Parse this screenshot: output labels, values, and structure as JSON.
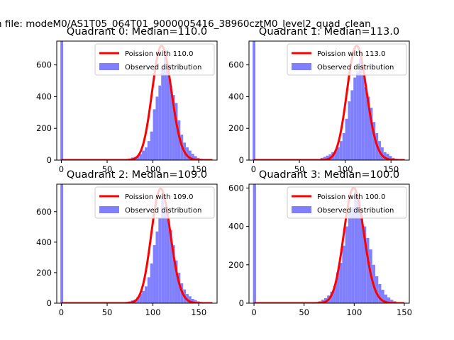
{
  "figure": {
    "suptitle": "n file: modeM0/AS1T05_064T01_9000005416_38960cztM0_level2_quad_clean"
  },
  "colors": {
    "hist": "#8080ff",
    "poisson": "#ff0000"
  },
  "chart_data": [
    {
      "type": "bar",
      "title": "Quadrant 0: Median=110.0",
      "xlim": [
        -5,
        170
      ],
      "ylim": [
        0,
        750
      ],
      "xticks": [
        "0",
        "50",
        "100",
        "150"
      ],
      "yticks": [
        "0",
        "200",
        "400",
        "600"
      ],
      "legend": {
        "placement": "top-right",
        "entries": [
          "Poission with 110.0",
          "Observed distribution"
        ]
      },
      "median": 110.0,
      "zero_bin_count": 750,
      "series": [
        {
          "name": "Observed distribution",
          "x": [
            64,
            67,
            70,
            73,
            76,
            79,
            82,
            85,
            88,
            91,
            94,
            97,
            100,
            103,
            106,
            109,
            112,
            115,
            118,
            121,
            124,
            127,
            130,
            133,
            136,
            139,
            142,
            145,
            148,
            151,
            154,
            157
          ],
          "values": [
            3,
            4,
            6,
            10,
            16,
            20,
            24,
            38,
            60,
            80,
            120,
            180,
            320,
            400,
            470,
            580,
            650,
            600,
            470,
            410,
            360,
            250,
            160,
            110,
            80,
            60,
            40,
            25,
            14,
            8,
            5,
            3
          ]
        },
        {
          "name": "Poission with 110.0",
          "mean": 110.0,
          "peak": 720
        }
      ]
    },
    {
      "type": "bar",
      "title": "Quadrant 1: Median=113.0",
      "xlim": [
        -5,
        170
      ],
      "ylim": [
        0,
        750
      ],
      "xticks": [
        "0",
        "50",
        "100",
        "150"
      ],
      "yticks": [
        "0",
        "200",
        "400",
        "600"
      ],
      "legend": {
        "placement": "top-right",
        "entries": [
          "Poission with 113.0",
          "Observed distribution"
        ]
      },
      "median": 113.0,
      "zero_bin_count": 750,
      "series": [
        {
          "name": "Observed distribution",
          "x": [
            67,
            70,
            73,
            76,
            79,
            82,
            85,
            88,
            91,
            94,
            97,
            100,
            103,
            106,
            109,
            112,
            115,
            118,
            121,
            124,
            127,
            130,
            133,
            136,
            139,
            142,
            145,
            148,
            151,
            154,
            157,
            160
          ],
          "values": [
            4,
            6,
            14,
            20,
            28,
            36,
            50,
            60,
            80,
            120,
            170,
            260,
            370,
            440,
            520,
            560,
            640,
            540,
            460,
            400,
            330,
            240,
            170,
            120,
            80,
            50,
            40,
            26,
            14,
            8,
            5,
            3
          ]
        },
        {
          "name": "Poission with 113.0",
          "mean": 113.0,
          "peak": 720
        }
      ]
    },
    {
      "type": "bar",
      "title": "Quadrant 2: Median=109.0",
      "xlim": [
        -5,
        170
      ],
      "ylim": [
        0,
        780
      ],
      "xticks": [
        "0",
        "50",
        "100",
        "150"
      ],
      "yticks": [
        "0",
        "200",
        "400",
        "600"
      ],
      "legend": {
        "placement": "top-right",
        "entries": [
          "Poission with 109.0",
          "Observed distribution"
        ]
      },
      "median": 109.0,
      "zero_bin_count": 780,
      "series": [
        {
          "name": "Observed distribution",
          "x": [
            64,
            67,
            70,
            73,
            76,
            79,
            82,
            85,
            88,
            91,
            94,
            97,
            100,
            103,
            106,
            109,
            112,
            115,
            118,
            121,
            124,
            127,
            130,
            133,
            136,
            139,
            142,
            145,
            148,
            151,
            154,
            157
          ],
          "values": [
            3,
            5,
            8,
            12,
            18,
            24,
            40,
            60,
            80,
            110,
            170,
            260,
            380,
            470,
            560,
            700,
            610,
            550,
            480,
            380,
            280,
            200,
            130,
            90,
            60,
            45,
            28,
            20,
            12,
            8,
            5,
            3
          ]
        },
        {
          "name": "Poission with 109.0",
          "mean": 109.0,
          "peak": 750
        }
      ]
    },
    {
      "type": "bar",
      "title": "Quadrant 3: Median=100.0",
      "xlim": [
        -5,
        155
      ],
      "ylim": [
        0,
        620
      ],
      "xticks": [
        "0",
        "50",
        "100",
        "150"
      ],
      "yticks": [
        "0",
        "200",
        "400",
        "600"
      ],
      "legend": {
        "placement": "top-right",
        "entries": [
          "Poission with 100.0",
          "Observed distribution"
        ]
      },
      "median": 100.0,
      "zero_bin_count": 620,
      "series": [
        {
          "name": "Observed distribution",
          "x": [
            55,
            58,
            61,
            64,
            67,
            70,
            73,
            76,
            79,
            82,
            85,
            88,
            91,
            94,
            97,
            100,
            103,
            106,
            109,
            112,
            115,
            118,
            121,
            124,
            127,
            130,
            133,
            136,
            139,
            142,
            145
          ],
          "values": [
            2,
            4,
            6,
            10,
            18,
            26,
            40,
            60,
            90,
            160,
            210,
            300,
            400,
            470,
            500,
            580,
            540,
            460,
            400,
            340,
            280,
            200,
            140,
            100,
            70,
            45,
            30,
            18,
            10,
            5,
            3
          ]
        },
        {
          "name": "Poission with 100.0",
          "mean": 100.0,
          "peak": 600
        }
      ]
    }
  ]
}
